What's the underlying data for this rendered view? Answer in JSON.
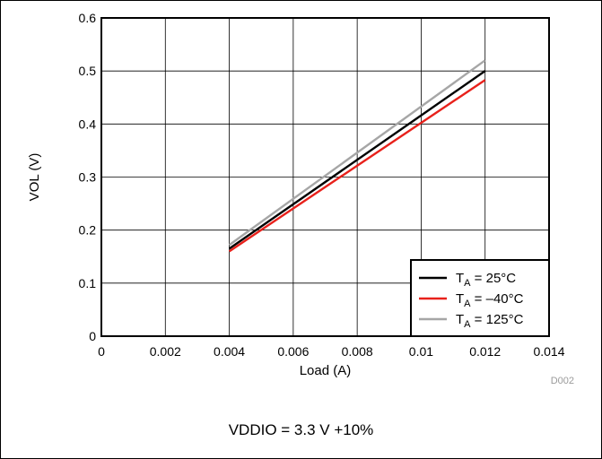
{
  "chart_data": {
    "type": "line",
    "xlabel": "Load (A)",
    "ylabel": "VOL (V)",
    "xlim": [
      0,
      0.014
    ],
    "ylim": [
      0,
      0.6
    ],
    "xticks": [
      "0",
      "0.002",
      "0.004",
      "0.006",
      "0.008",
      "0.01",
      "0.012",
      "0.014"
    ],
    "yticks": [
      "0",
      "0.1",
      "0.2",
      "0.3",
      "0.4",
      "0.5",
      "0.6"
    ],
    "grid": true,
    "legend_position": "bottom-right",
    "series": [
      {
        "name": "TA = 25°C",
        "color": "#000000",
        "x": [
          0.004,
          0.012
        ],
        "y": [
          0.165,
          0.5
        ]
      },
      {
        "name": "TA = –40°C",
        "color": "#e8211b",
        "x": [
          0.004,
          0.012
        ],
        "y": [
          0.16,
          0.483
        ]
      },
      {
        "name": "TA = 125°C",
        "color": "#a6a6a6",
        "x": [
          0.004,
          0.012
        ],
        "y": [
          0.172,
          0.52
        ]
      }
    ],
    "legend": [
      {
        "main": "T",
        "sub": "A",
        "rest": " = 25°C"
      },
      {
        "main": "T",
        "sub": "A",
        "rest": " = –40°C"
      },
      {
        "main": "T",
        "sub": "A",
        "rest": " = 125°C"
      }
    ],
    "annotation": "D002"
  },
  "caption": "VDDIO = 3.3 V +10%"
}
